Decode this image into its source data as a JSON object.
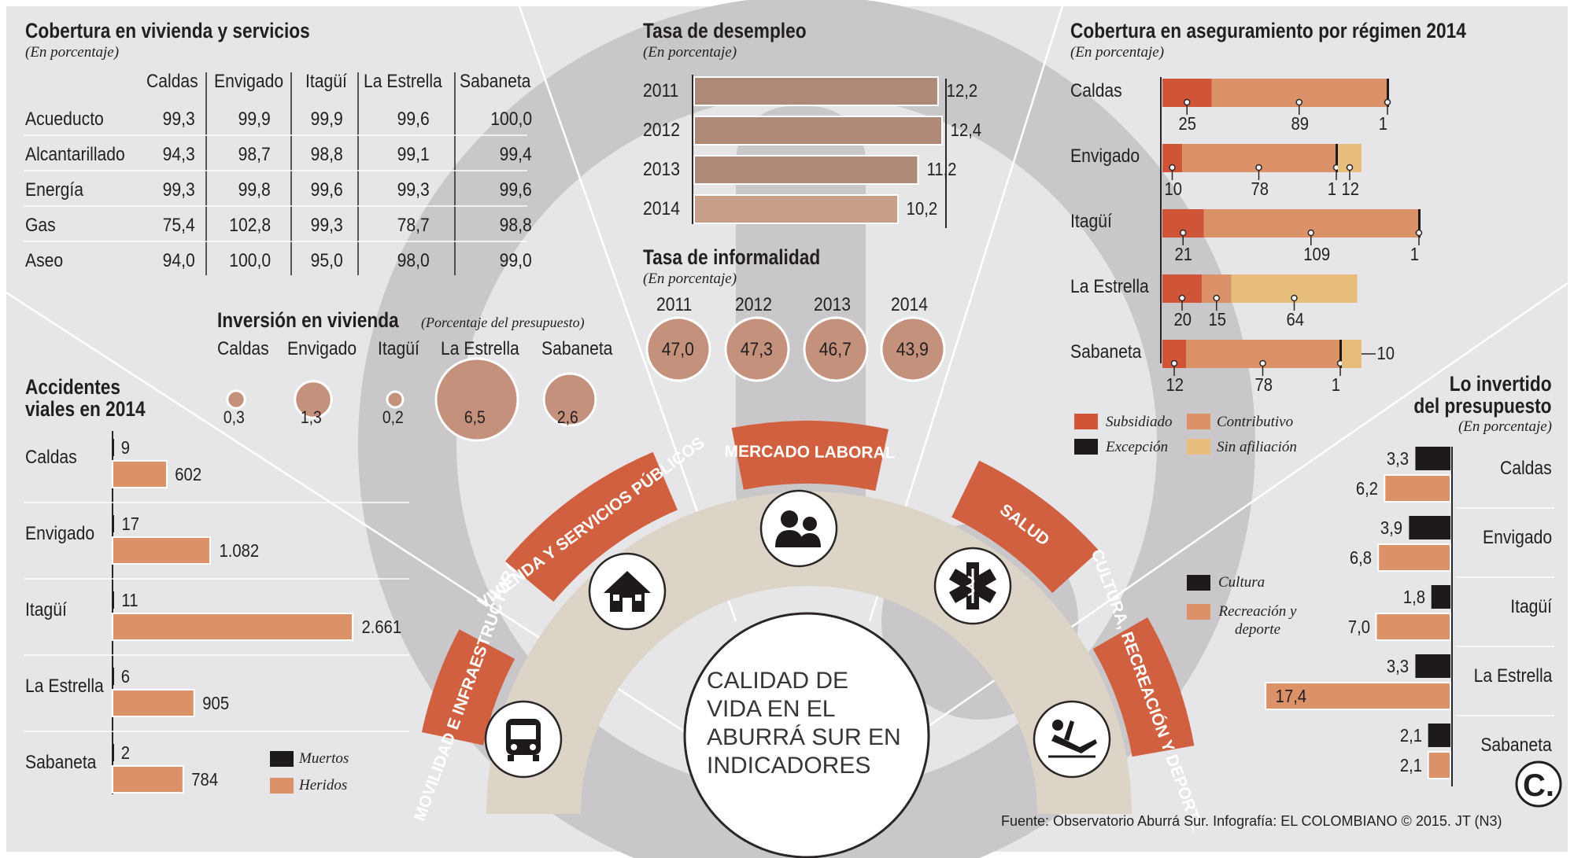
{
  "colors": {
    "panel": "#e6e5e7",
    "watermark": "#c9c7ca",
    "watermark_inner": "#e6e5e7",
    "arc": "#d06040",
    "arc_light": "#d9d3c6",
    "bar": "#dc9269",
    "bar_stroke": "#ffffff",
    "unemp": "#b08a78",
    "unemp_light": "#c79f88",
    "circle": "#c4917d",
    "subsidiado": "#cf5438",
    "contributivo": "#dc9269",
    "excepcion": "#1e1a1b",
    "sin_afiliacion": "#e7bd7b",
    "cultura": "#1e1a1b",
    "recreacion": "#dc9269"
  },
  "vivienda": {
    "title": "Cobertura en vivienda y servicios",
    "subtitle": "(En porcentaje)",
    "columns": [
      "Caldas",
      "Envigado",
      "Itagüí",
      "La Estrella",
      "Sabaneta"
    ],
    "rows": [
      {
        "label": "Acueducto",
        "values": [
          "99,3",
          "99,9",
          "99,9",
          "99,6",
          "100,0"
        ]
      },
      {
        "label": "Alcantarillado",
        "values": [
          "94,3",
          "98,7",
          "98,8",
          "99,1",
          "99,4"
        ]
      },
      {
        "label": "Energía",
        "values": [
          "99,3",
          "99,8",
          "99,6",
          "99,3",
          "99,6"
        ]
      },
      {
        "label": "Gas",
        "values": [
          "75,4",
          "102,8",
          "99,3",
          "78,7",
          "98,8"
        ]
      },
      {
        "label": "Aseo",
        "values": [
          "94,0",
          "100,0",
          "95,0",
          "98,0",
          "99,0"
        ]
      }
    ]
  },
  "inversion": {
    "title": "Inversión en vivienda",
    "subtitle": "(Porcentaje del presupuesto)",
    "items": [
      {
        "label": "Caldas",
        "value": "0,3",
        "num": 0.3
      },
      {
        "label": "Envigado",
        "value": "1,3",
        "num": 1.3
      },
      {
        "label": "Itagüí",
        "value": "0,2",
        "num": 0.2
      },
      {
        "label": "La Estrella",
        "value": "6,5",
        "num": 6.5
      },
      {
        "label": "Sabaneta",
        "value": "2,6",
        "num": 2.6
      }
    ]
  },
  "accidentes": {
    "title_line1": "Accidentes",
    "title_line2": "viales en 2014",
    "legend_muertos": "Muertos",
    "legend_heridos": "Heridos",
    "rows": [
      {
        "label": "Caldas",
        "muertos": "9",
        "m": 9,
        "heridos": "602",
        "h": 602
      },
      {
        "label": "Envigado",
        "muertos": "17",
        "m": 17,
        "heridos": "1.082",
        "h": 1082
      },
      {
        "label": "Itagüí",
        "muertos": "11",
        "m": 11,
        "heridos": "2.661",
        "h": 2661
      },
      {
        "label": "La Estrella",
        "muertos": "6",
        "m": 6,
        "heridos": "905",
        "h": 905
      },
      {
        "label": "Sabaneta",
        "muertos": "2",
        "m": 2,
        "heridos": "784",
        "h": 784
      }
    ]
  },
  "desempleo": {
    "title": "Tasa de desempleo",
    "subtitle": "(En porcentaje)",
    "rows": [
      {
        "year": "2011",
        "value": "12,2",
        "num": 12.2
      },
      {
        "year": "2012",
        "value": "12,4",
        "num": 12.4
      },
      {
        "year": "2013",
        "value": "11,2",
        "num": 11.2
      },
      {
        "year": "2014",
        "value": "10,2",
        "num": 10.2
      }
    ]
  },
  "informalidad": {
    "title": "Tasa de informalidad",
    "subtitle": "(En porcentaje)",
    "items": [
      {
        "year": "2011",
        "value": "47,0"
      },
      {
        "year": "2012",
        "value": "47,3"
      },
      {
        "year": "2013",
        "value": "46,7"
      },
      {
        "year": "2014",
        "value": "43,9"
      }
    ]
  },
  "aseguramiento": {
    "title": "Cobertura en aseguramiento por régimen 2014",
    "subtitle": "(En porcentaje)",
    "legend": {
      "subsidiado": "Subsidiado",
      "contributivo": "Contributivo",
      "excepcion": "Excepción",
      "sin_afiliacion": "Sin afiliación"
    },
    "rows": [
      {
        "label": "Caldas",
        "segments": [
          {
            "type": "subsidiado",
            "value": 25,
            "label": "25"
          },
          {
            "type": "contributivo",
            "value": 89,
            "label": "89"
          },
          {
            "type": "excepcion",
            "value": 1,
            "label": "1"
          }
        ]
      },
      {
        "label": "Envigado",
        "segments": [
          {
            "type": "subsidiado",
            "value": 10,
            "label": "10"
          },
          {
            "type": "contributivo",
            "value": 78,
            "label": "78"
          },
          {
            "type": "excepcion",
            "value": 1,
            "label": "1"
          },
          {
            "type": "sin_afiliacion",
            "value": 12,
            "label": "12"
          }
        ]
      },
      {
        "label": "Itagüí",
        "segments": [
          {
            "type": "subsidiado",
            "value": 21,
            "label": "21"
          },
          {
            "type": "contributivo",
            "value": 109,
            "label": "109"
          },
          {
            "type": "excepcion",
            "value": 1,
            "label": "1"
          }
        ]
      },
      {
        "label": "La Estrella",
        "segments": [
          {
            "type": "subsidiado",
            "value": 20,
            "label": "20"
          },
          {
            "type": "contributivo",
            "value": 15,
            "label": "15"
          },
          {
            "type": "sin_afiliacion",
            "value": 64,
            "label": "64"
          }
        ]
      },
      {
        "label": "Sabaneta",
        "segments": [
          {
            "type": "subsidiado",
            "value": 12,
            "label": "12"
          },
          {
            "type": "contributivo",
            "value": 78,
            "label": "78"
          },
          {
            "type": "excepcion",
            "value": 1,
            "label": "1"
          },
          {
            "type": "sin_afiliacion",
            "value": 10,
            "label": "10"
          }
        ]
      }
    ]
  },
  "invertido": {
    "title_line1": "Lo invertido",
    "title_line2": "del presupuesto",
    "subtitle": "(En porcentaje)",
    "legend_cultura": "Cultura",
    "legend_recreacion": "Recreación y deporte",
    "rows": [
      {
        "label": "Caldas",
        "cultura": "3,3",
        "c": 3.3,
        "recreacion": "6,2",
        "r": 6.2
      },
      {
        "label": "Envigado",
        "cultura": "3,9",
        "c": 3.9,
        "recreacion": "6,8",
        "r": 6.8
      },
      {
        "label": "Itagüí",
        "cultura": "1,8",
        "c": 1.8,
        "recreacion": "7,0",
        "r": 7.0
      },
      {
        "label": "La Estrella",
        "cultura": "3,3",
        "c": 3.3,
        "recreacion": "17,4",
        "r": 17.4
      },
      {
        "label": "Sabaneta",
        "cultura": "2,1",
        "c": 2.1,
        "recreacion": "2,1",
        "r": 2.1
      }
    ]
  },
  "arcs": {
    "movilidad": "MOVILIDAD E INFRAESTRUCTURA",
    "vivienda": "VIVIENDA Y SERVICIOS PÚBLICOS",
    "mercado": "MERCADO LABORAL",
    "salud": "SALUD",
    "cultura": "CULTURA, RECREACIÓN Y DEPORTE"
  },
  "center": {
    "line1": "CALIDAD DE",
    "line2": "VIDA EN EL",
    "line3": "ABURRÁ SUR EN",
    "line4": "INDICADORES"
  },
  "source": "Fuente: Observatorio Aburrá Sur. Infografía: EL COLOMBIANO © 2015. JT (N3)",
  "logo": "C.",
  "chart_data": [
    {
      "type": "table",
      "title": "Cobertura en vivienda y servicios",
      "columns": [
        "Caldas",
        "Envigado",
        "Itagüí",
        "La Estrella",
        "Sabaneta"
      ],
      "rows": [
        "Acueducto",
        "Alcantarillado",
        "Energía",
        "Gas",
        "Aseo"
      ]
    },
    {
      "type": "bar",
      "title": "Tasa de desempleo",
      "categories": [
        "2011",
        "2012",
        "2013",
        "2014"
      ],
      "values": [
        12.2,
        12.4,
        11.2,
        10.2
      ]
    },
    {
      "type": "scatter",
      "title": "Tasa de informalidad",
      "categories": [
        "2011",
        "2012",
        "2013",
        "2014"
      ],
      "values": [
        47.0,
        47.3,
        46.7,
        43.9
      ]
    },
    {
      "type": "scatter",
      "title": "Inversión en vivienda",
      "categories": [
        "Caldas",
        "Envigado",
        "Itagüí",
        "La Estrella",
        "Sabaneta"
      ],
      "values": [
        0.3,
        1.3,
        0.2,
        6.5,
        2.6
      ]
    },
    {
      "type": "bar",
      "title": "Accidentes viales en 2014",
      "categories": [
        "Caldas",
        "Envigado",
        "Itagüí",
        "La Estrella",
        "Sabaneta"
      ],
      "series": [
        {
          "name": "Muertos",
          "values": [
            9,
            17,
            11,
            6,
            2
          ]
        },
        {
          "name": "Heridos",
          "values": [
            602,
            1082,
            2661,
            905,
            784
          ]
        }
      ]
    },
    {
      "type": "bar",
      "title": "Cobertura en aseguramiento por régimen 2014",
      "categories": [
        "Caldas",
        "Envigado",
        "Itagüí",
        "La Estrella",
        "Sabaneta"
      ],
      "series": [
        {
          "name": "Subsidiado",
          "values": [
            25,
            10,
            21,
            20,
            12
          ]
        },
        {
          "name": "Contributivo",
          "values": [
            89,
            78,
            109,
            15,
            78
          ]
        },
        {
          "name": "Excepción",
          "values": [
            1,
            1,
            1,
            0,
            1
          ]
        },
        {
          "name": "Sin afiliación",
          "values": [
            0,
            12,
            0,
            64,
            10
          ]
        }
      ]
    },
    {
      "type": "bar",
      "title": "Lo invertido del presupuesto",
      "categories": [
        "Caldas",
        "Envigado",
        "Itagüí",
        "La Estrella",
        "Sabaneta"
      ],
      "series": [
        {
          "name": "Cultura",
          "values": [
            3.3,
            3.9,
            1.8,
            3.3,
            2.1
          ]
        },
        {
          "name": "Recreación y deporte",
          "values": [
            6.2,
            6.8,
            7.0,
            17.4,
            2.1
          ]
        }
      ]
    }
  ]
}
